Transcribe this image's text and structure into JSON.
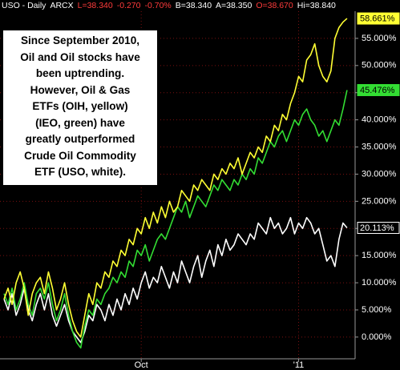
{
  "chart_data": {
    "type": "line",
    "header": [
      "USO - Daily",
      "ARCX",
      "L=38.340",
      "-0.270",
      "-0.70%",
      "B=38.340",
      "A=38.350",
      "O=38.670",
      "Hi=38.840"
    ],
    "annotation": [
      "Since September 2010,",
      "Oil and Oil stocks have",
      "been uptrending.",
      "However, Oil & Gas",
      "ETFs (OIH, yellow)",
      "(IEO, green) have",
      "greatly outperformed",
      "Crude Oil Commodity",
      "ETF (USO, white)."
    ],
    "x": [
      0,
      1,
      2,
      3,
      4,
      5,
      6,
      7,
      8,
      9,
      10,
      11,
      12,
      13,
      14,
      15,
      16,
      17,
      18,
      19,
      20,
      21,
      22,
      23,
      24,
      25,
      26,
      27,
      28,
      29,
      30,
      31,
      32,
      33,
      34,
      35,
      36,
      37,
      38,
      39,
      40,
      41,
      42,
      43,
      44,
      45,
      46,
      47,
      48,
      49,
      50,
      51,
      52,
      53,
      54,
      55,
      56,
      57,
      58,
      59,
      60,
      61,
      62,
      63,
      64,
      65,
      66,
      67,
      68,
      69,
      70,
      71,
      72,
      73,
      74,
      75,
      76,
      77,
      78,
      79,
      80,
      81,
      82,
      83,
      84,
      85
    ],
    "xlim": [
      -1,
      87
    ],
    "xticks": [
      {
        "value": 34,
        "label": "Oct"
      },
      {
        "value": 73,
        "label": "'11"
      }
    ],
    "ylim": [
      -4,
      60
    ],
    "yticks": [
      {
        "value": 0,
        "label": "0.000%"
      },
      {
        "value": 5,
        "label": "5.000%"
      },
      {
        "value": 10,
        "label": "10.000%"
      },
      {
        "value": 15,
        "label": "15.000%"
      },
      {
        "value": 20,
        "label": "20.000%"
      },
      {
        "value": 25,
        "label": "25.000%"
      },
      {
        "value": 30,
        "label": "30.000%"
      },
      {
        "value": 35,
        "label": "35.000%"
      },
      {
        "value": 40,
        "label": "40.000%"
      },
      {
        "value": 45,
        "label": "45.000%"
      },
      {
        "value": 50,
        "label": "50.000%"
      },
      {
        "value": 55,
        "label": "55.000%"
      }
    ],
    "grid": true,
    "series": [
      {
        "color": "#ffffff",
        "last_label": "20.113%",
        "values": [
          7,
          5,
          8,
          4,
          6,
          9,
          5,
          3,
          6,
          8,
          5,
          8,
          4,
          2,
          4,
          6,
          3,
          1,
          0,
          -1,
          1,
          4,
          3,
          6,
          5,
          3,
          6,
          4,
          7,
          5,
          8,
          6,
          9,
          7,
          10,
          12,
          9,
          11,
          10,
          13,
          11,
          9,
          12,
          10,
          14,
          12,
          10,
          13,
          15,
          11,
          14,
          16,
          13,
          17,
          15,
          18,
          16,
          17,
          19,
          18,
          17,
          19,
          18,
          21,
          20,
          19,
          22,
          20,
          21,
          19,
          20,
          22,
          19,
          21,
          20,
          22,
          21,
          19,
          20,
          17,
          14,
          15,
          13,
          18,
          21,
          20.113
        ]
      },
      {
        "color": "#33dd33",
        "last_label": "45.476%",
        "values": [
          8,
          6,
          9,
          5,
          7,
          10,
          6,
          4,
          8,
          9,
          7,
          10,
          6,
          3,
          5,
          8,
          4,
          1,
          -1,
          -2,
          2,
          5,
          4,
          7,
          6,
          8,
          9,
          11,
          10,
          12,
          11,
          14,
          13,
          16,
          15,
          17,
          14,
          16,
          18,
          19,
          18,
          20,
          22,
          24,
          23,
          25,
          22,
          24,
          26,
          25,
          24,
          26,
          28,
          27,
          29,
          28,
          27,
          29,
          28,
          30,
          29,
          31,
          30,
          33,
          32,
          34,
          36,
          35,
          37,
          38,
          36,
          38,
          40,
          39,
          41,
          42,
          40,
          39,
          37,
          38,
          36,
          38,
          40,
          39,
          42,
          45.476
        ]
      },
      {
        "color": "#ffff33",
        "last_label": "58.661%",
        "values": [
          7,
          9,
          6,
          10,
          12,
          9,
          4,
          8,
          10,
          11,
          8,
          12,
          9,
          5,
          7,
          10,
          6,
          3,
          1,
          0,
          4,
          8,
          6,
          10,
          9,
          12,
          11,
          14,
          13,
          16,
          15,
          18,
          17,
          20,
          19,
          22,
          20,
          23,
          21,
          24,
          22,
          25,
          23,
          24,
          27,
          26,
          25,
          28,
          27,
          29,
          28,
          27,
          30,
          29,
          31,
          30,
          32,
          31,
          33,
          30,
          32,
          34,
          33,
          35,
          34,
          37,
          36,
          39,
          38,
          41,
          40,
          43,
          45,
          48,
          47,
          51,
          52,
          54,
          50,
          48,
          47,
          49,
          55,
          57,
          58,
          58.661
        ]
      }
    ]
  }
}
